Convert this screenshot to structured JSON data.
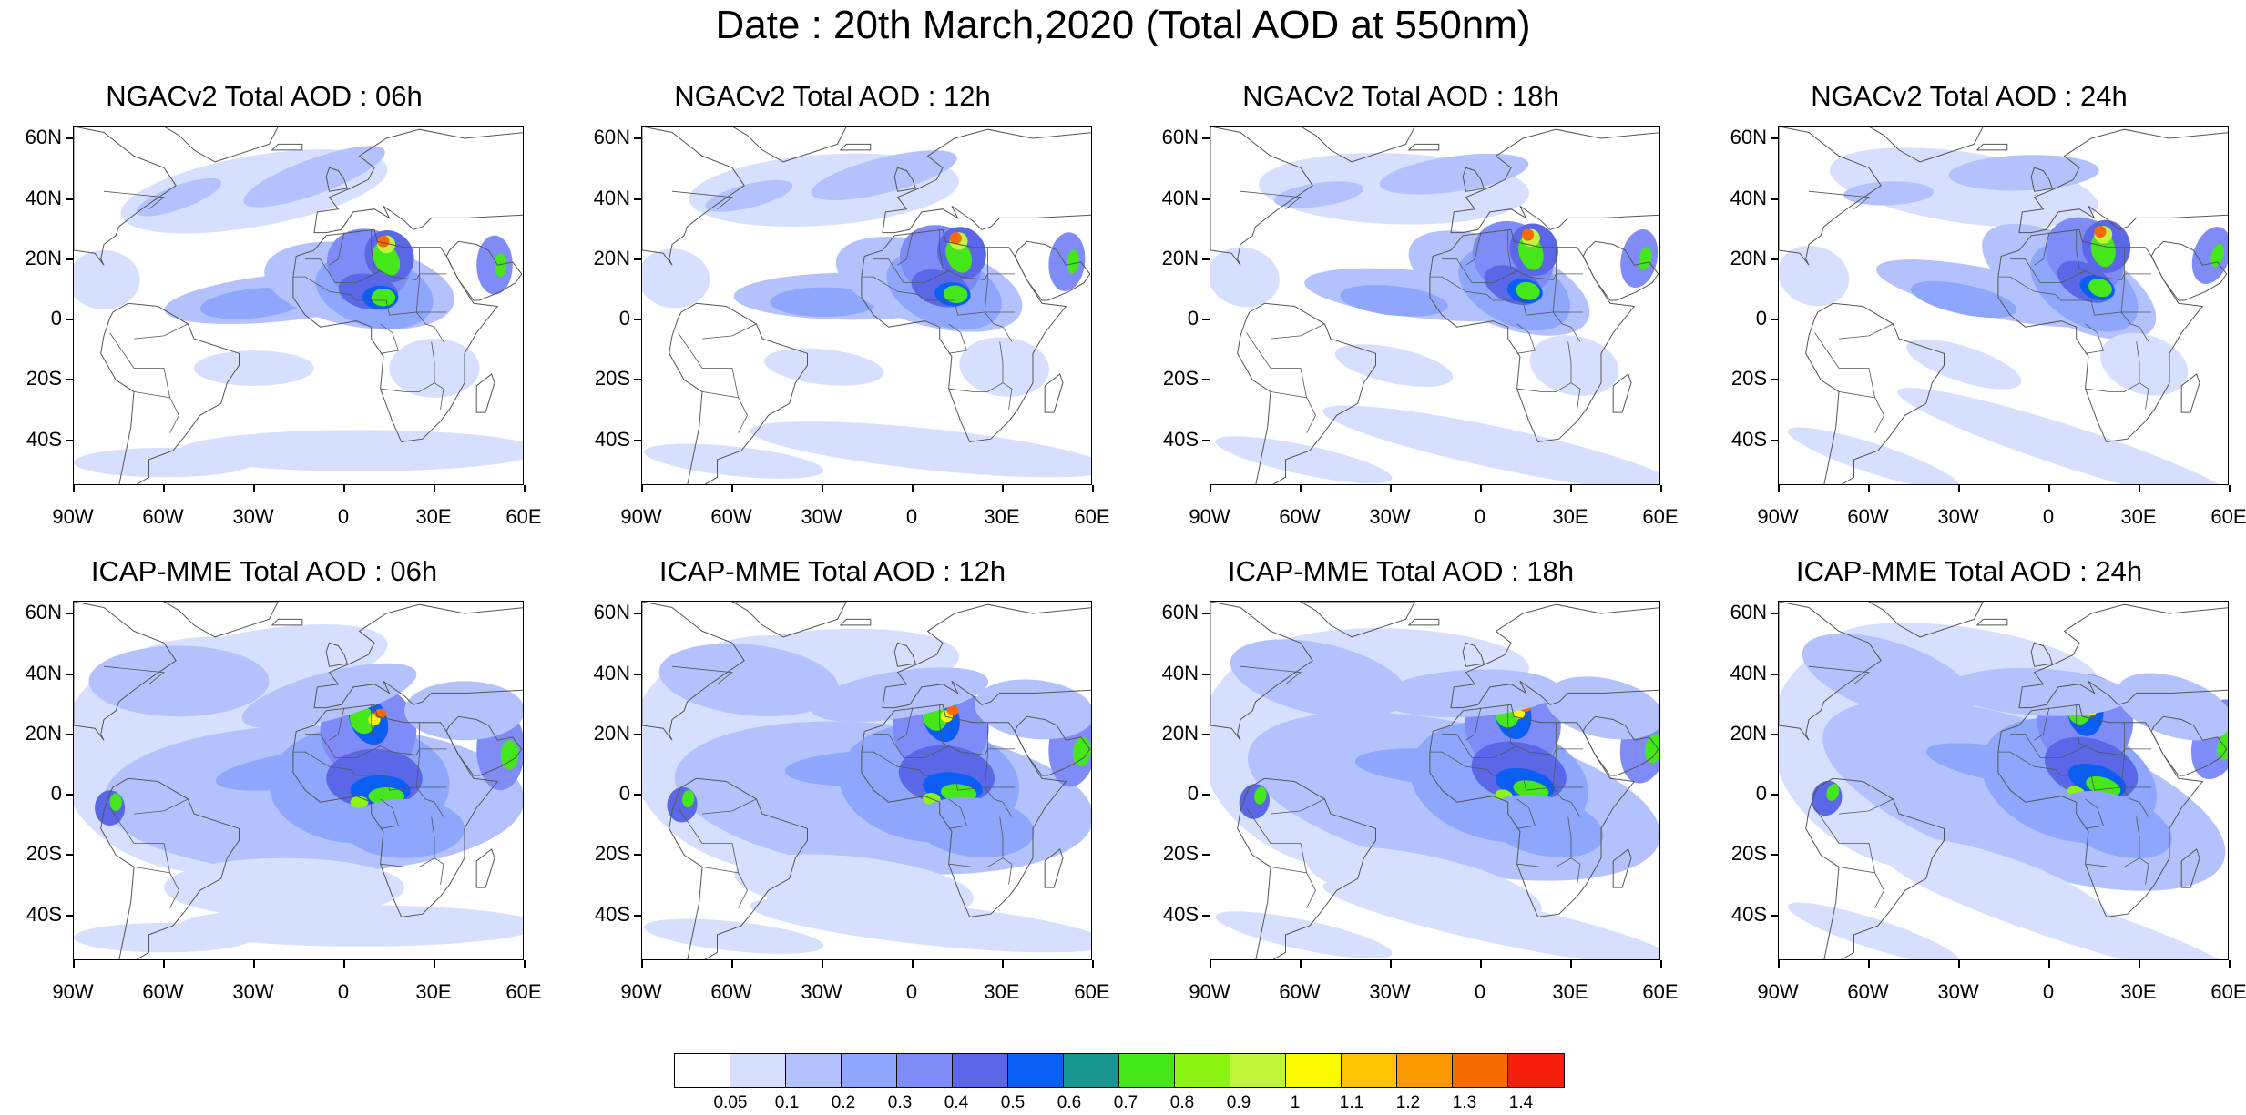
{
  "title": "Date : 20th March,2020 (Total AOD at 550nm)",
  "map_axes": {
    "lat_labels": [
      "60N",
      "40N",
      "20N",
      "0",
      "20S",
      "40S"
    ],
    "lon_labels": [
      "90W",
      "60W",
      "30W",
      "0",
      "30E",
      "60E"
    ]
  },
  "panels": [
    {
      "title": "NGACv2 Total AOD : 06h"
    },
    {
      "title": "NGACv2 Total AOD : 12h"
    },
    {
      "title": "NGACv2 Total AOD : 18h"
    },
    {
      "title": "NGACv2 Total AOD : 24h"
    },
    {
      "title": "ICAP-MME Total AOD : 06h"
    },
    {
      "title": "ICAP-MME Total AOD : 12h"
    },
    {
      "title": "ICAP-MME Total AOD : 18h"
    },
    {
      "title": "ICAP-MME Total AOD : 24h"
    }
  ],
  "colorbar": {
    "labels": [
      "0.05",
      "0.1",
      "0.2",
      "0.3",
      "0.4",
      "0.5",
      "0.6",
      "0.7",
      "0.8",
      "0.9",
      "1",
      "1.1",
      "1.2",
      "1.3",
      "1.4"
    ],
    "colors": [
      "#ffffff",
      "#d6dffd",
      "#b3c2fc",
      "#8ea6fb",
      "#7f8cf7",
      "#5a67e6",
      "#0a5ef6",
      "#17968f",
      "#45e61a",
      "#8cf50f",
      "#c0f53a",
      "#fafa00",
      "#fcc400",
      "#f99a00",
      "#f76a00",
      "#f51d0c"
    ]
  },
  "legend_colors": {
    "land_outline": "#555555",
    "background": "#ffffff"
  }
}
